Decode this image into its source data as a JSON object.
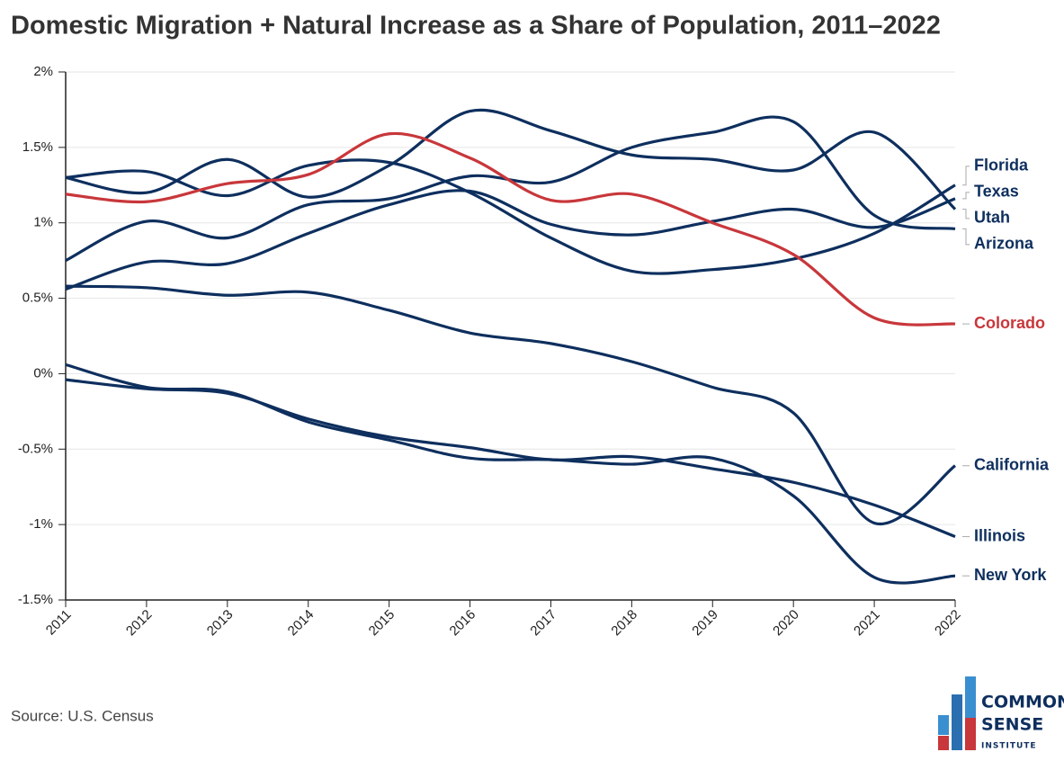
{
  "chart_data": {
    "type": "line",
    "title": "Domestic Migration + Natural Increase as a Share of Population, 2011–2022",
    "categories": [
      "2011",
      "2012",
      "2013",
      "2014",
      "2015",
      "2016",
      "2017",
      "2018",
      "2019",
      "2020",
      "2021",
      "2022"
    ],
    "series": [
      {
        "name": "Florida",
        "color": "#0e2f5e",
        "values": [
          1.3,
          1.34,
          1.18,
          1.38,
          1.4,
          1.2,
          0.9,
          0.68,
          0.69,
          0.76,
          0.93,
          1.25
        ]
      },
      {
        "name": "Texas",
        "color": "#0e2f5e",
        "values": [
          0.56,
          0.74,
          0.73,
          0.93,
          1.12,
          1.21,
          0.99,
          0.92,
          1.01,
          1.09,
          0.97,
          1.16
        ]
      },
      {
        "name": "Utah",
        "color": "#0e2f5e",
        "values": [
          1.3,
          1.2,
          1.42,
          1.17,
          1.38,
          1.74,
          1.61,
          1.45,
          1.42,
          1.35,
          1.6,
          1.09
        ]
      },
      {
        "name": "Arizona",
        "color": "#0e2f5e",
        "values": [
          0.75,
          1.01,
          0.9,
          1.12,
          1.16,
          1.31,
          1.27,
          1.5,
          1.6,
          1.67,
          1.05,
          0.96
        ]
      },
      {
        "name": "Colorado",
        "color": "#c8373b",
        "values": [
          1.19,
          1.14,
          1.26,
          1.32,
          1.59,
          1.43,
          1.15,
          1.19,
          1.0,
          0.79,
          0.37,
          0.33
        ]
      },
      {
        "name": "California",
        "color": "#0e2f5e",
        "values": [
          0.58,
          0.57,
          0.52,
          0.54,
          0.42,
          0.27,
          0.2,
          0.08,
          -0.09,
          -0.26,
          -0.99,
          -0.61
        ]
      },
      {
        "name": "Illinois",
        "color": "#0e2f5e",
        "values": [
          -0.04,
          -0.1,
          -0.13,
          -0.3,
          -0.42,
          -0.49,
          -0.57,
          -0.55,
          -0.63,
          -0.72,
          -0.87,
          -1.08
        ]
      },
      {
        "name": "New York",
        "color": "#0e2f5e",
        "values": [
          0.06,
          -0.09,
          -0.12,
          -0.32,
          -0.44,
          -0.56,
          -0.57,
          -0.6,
          -0.56,
          -0.81,
          -1.35,
          -1.34
        ]
      }
    ],
    "ylim": [
      -1.5,
      2
    ],
    "yticks": [
      {
        "value": -1.5,
        "label": "-1.5%"
      },
      {
        "value": -1,
        "label": "-1%"
      },
      {
        "value": -0.5,
        "label": "-0.5%"
      },
      {
        "value": 0,
        "label": "0%"
      },
      {
        "value": 0.5,
        "label": "0.5%"
      },
      {
        "value": 1,
        "label": "1%"
      },
      {
        "value": 1.5,
        "label": "1.5%"
      },
      {
        "value": 2,
        "label": "2%"
      }
    ],
    "grid": true,
    "source": "Source: U.S. Census",
    "logo": [
      "COMMON",
      "SENSE",
      "INSTITUTE"
    ]
  }
}
